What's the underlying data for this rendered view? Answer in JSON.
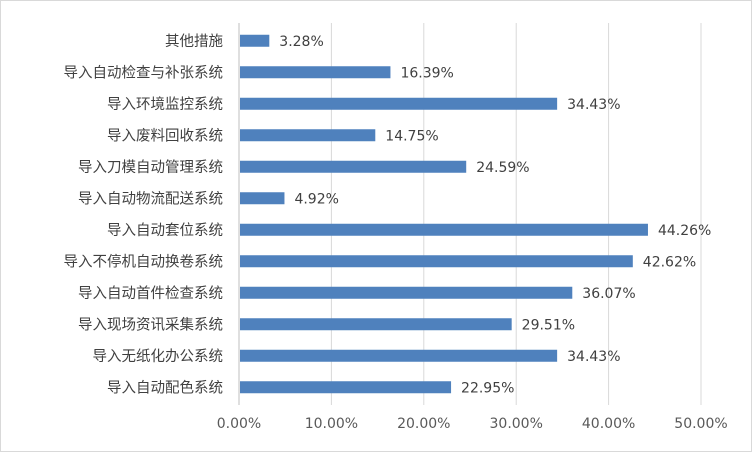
{
  "chart_data": {
    "type": "bar",
    "orientation": "horizontal",
    "categories": [
      "其他措施",
      "导入自动检查与补张系统",
      "导入环境监控系统",
      "导入废料回收系统",
      "导入刀模自动管理系统",
      "导入自动物流配送系统",
      "导入自动套位系统",
      "导入不停机自动换卷系统",
      "导入自动首件检查系统",
      "导入现场资讯采集系统",
      "导入无纸化办公系统",
      "导入自动配色系统"
    ],
    "values": [
      3.28,
      16.39,
      34.43,
      14.75,
      24.59,
      4.92,
      44.26,
      42.62,
      36.07,
      29.51,
      34.43,
      22.95
    ],
    "value_labels": [
      "3.28%",
      "16.39%",
      "34.43%",
      "14.75%",
      "24.59%",
      "4.92%",
      "44.26%",
      "42.62%",
      "36.07%",
      "29.51%",
      "34.43%",
      "22.95%"
    ],
    "x_ticks": [
      0,
      10,
      20,
      30,
      40,
      50
    ],
    "x_tick_labels": [
      "0.00%",
      "10.00%",
      "20.00%",
      "30.00%",
      "40.00%",
      "50.00%"
    ],
    "xlim": [
      0,
      50
    ],
    "unit": "%",
    "grid": "vertical",
    "legend": "none",
    "bar_color": "#4f81bd"
  }
}
